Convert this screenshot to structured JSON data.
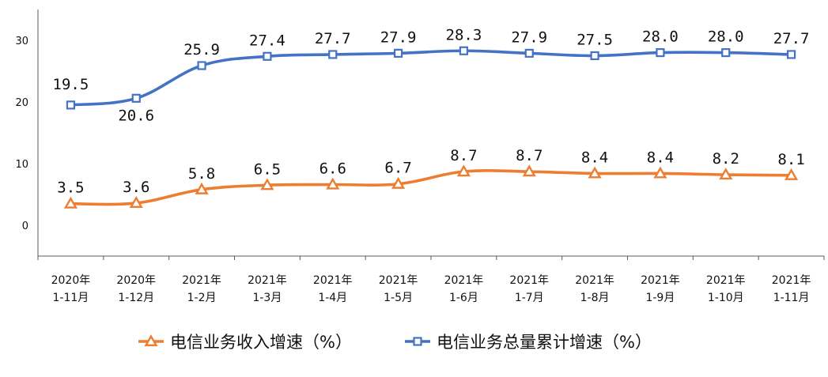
{
  "chart_data": {
    "type": "line",
    "categories": [
      [
        "2020年",
        "1-11月"
      ],
      [
        "2020年",
        "1-12月"
      ],
      [
        "2021年",
        "1-2月"
      ],
      [
        "2021年",
        "1-3月"
      ],
      [
        "2021年",
        "1-4月"
      ],
      [
        "2021年",
        "1-5月"
      ],
      [
        "2021年",
        "1-6月"
      ],
      [
        "2021年",
        "1-7月"
      ],
      [
        "2021年",
        "1-8月"
      ],
      [
        "2021年",
        "1-9月"
      ],
      [
        "2021年",
        "1-10月"
      ],
      [
        "2021年",
        "1-11月"
      ]
    ],
    "series": [
      {
        "name": "电信业务收入增速（%）",
        "color": "#ED7D31",
        "marker": "triangle",
        "values": [
          3.5,
          3.6,
          5.8,
          6.5,
          6.6,
          6.7,
          8.7,
          8.7,
          8.4,
          8.4,
          8.2,
          8.1
        ],
        "labels": [
          "3.5",
          "3.6",
          "5.8",
          "6.5",
          "6.6",
          "6.7",
          "8.7",
          "8.7",
          "8.4",
          "8.4",
          "8.2",
          "8.1"
        ]
      },
      {
        "name": "电信业务总量累计增速（%）",
        "color": "#4472C4",
        "marker": "square",
        "values": [
          19.5,
          20.6,
          25.9,
          27.4,
          27.7,
          27.9,
          28.3,
          27.9,
          27.5,
          28.0,
          28.0,
          27.7
        ],
        "labels": [
          "19.5",
          "20.6",
          "25.9",
          "27.4",
          "27.7",
          "27.9",
          "28.3",
          "27.9",
          "27.5",
          "28.0",
          "28.0",
          "27.7"
        ]
      }
    ],
    "yticks": [
      "0",
      "10",
      "20",
      "30"
    ],
    "ylim": [
      -5,
      35
    ],
    "grid": false,
    "legend_position": "bottom"
  }
}
